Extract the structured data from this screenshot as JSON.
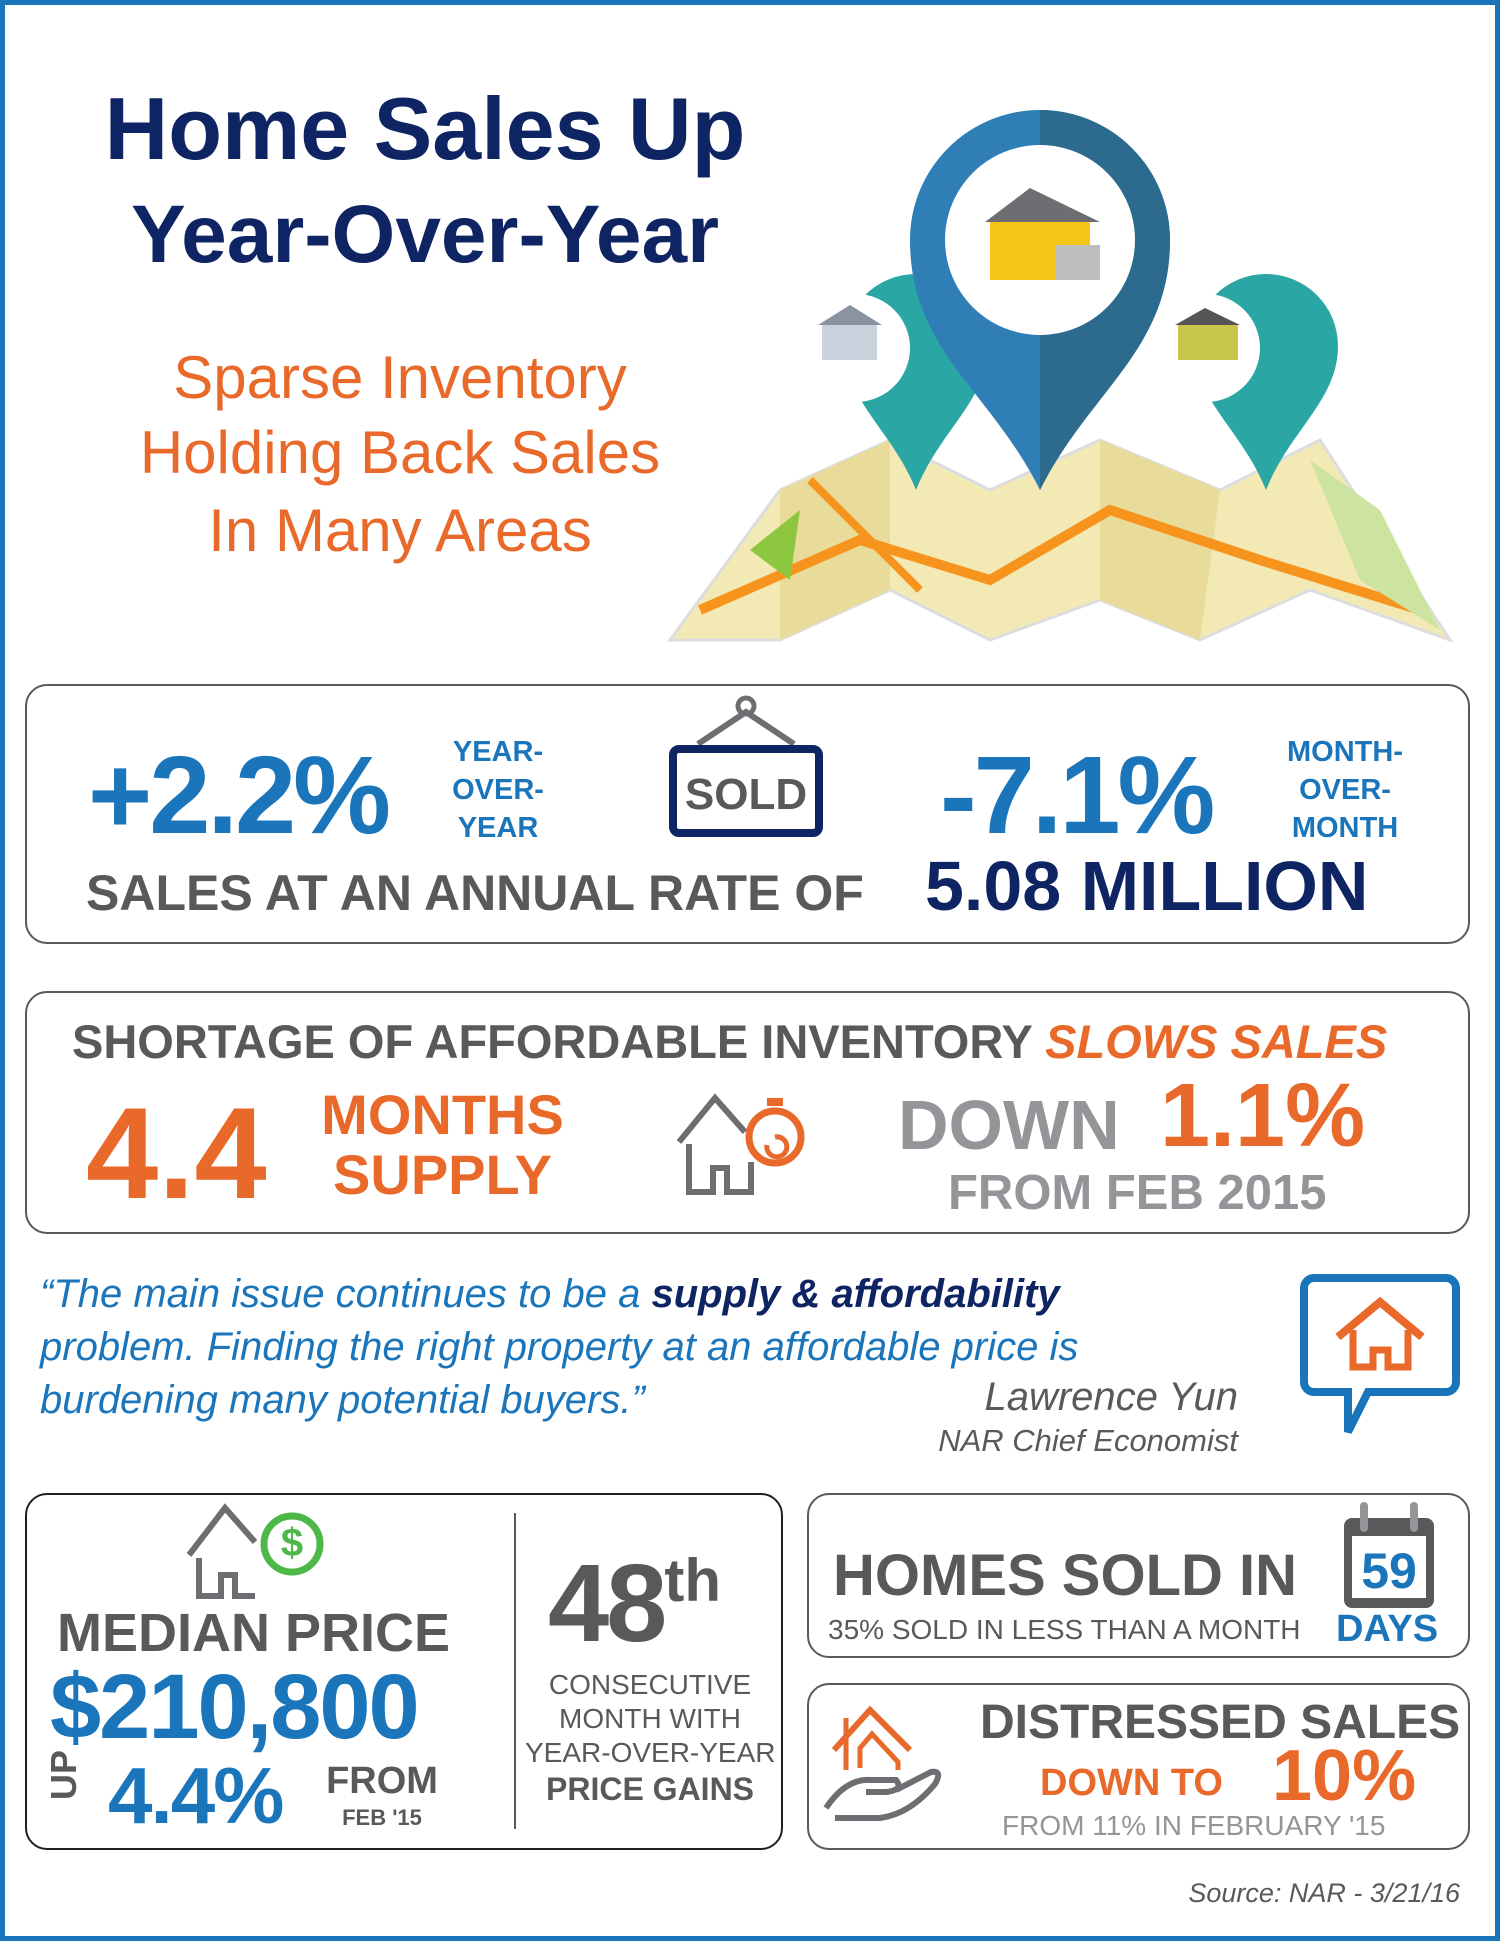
{
  "header": {
    "title_line1": "Home Sales Up",
    "title_line2": "Year-Over-Year",
    "subtitle_line1": "Sparse Inventory",
    "subtitle_line2": "Holding Back Sales",
    "subtitle_line3": "In Many Areas"
  },
  "sales": {
    "yoy_value": "+2.2%",
    "yoy_label": [
      "YEAR-",
      "OVER-",
      "YEAR"
    ],
    "sign_text": "SOLD",
    "mom_value": "-7.1%",
    "mom_label": [
      "MONTH-",
      "OVER-",
      "MONTH"
    ],
    "annual_rate_label": "SALES AT AN ANNUAL RATE OF",
    "annual_rate_value": "5.08 MILLION"
  },
  "inventory": {
    "heading": "SHORTAGE OF AFFORDABLE INVENTORY",
    "heading_emphasis": "SLOWS SALES",
    "months_value": "4.4",
    "months_label_1": "MONTHS",
    "months_label_2": "SUPPLY",
    "down_label": "DOWN",
    "down_value": "1.1%",
    "from_label": "FROM FEB 2015"
  },
  "quote": {
    "text_1": "“The main issue continues to be a ",
    "text_bold": "supply & affordability",
    "text_2": "problem. Finding the right property at an affordable price is",
    "text_3": "burdening many potential buyers.”",
    "author": "Lawrence Yun",
    "author_title": "NAR Chief Economist"
  },
  "median": {
    "label": "MEDIAN PRICE",
    "value": "$210,800",
    "up_label": "UP",
    "up_value": "4.4%",
    "from_label": "FROM",
    "from_date": "FEB '15",
    "dollar_sign": "$"
  },
  "consecutive": {
    "number": "48",
    "suffix": "th",
    "line1": "CONSECUTIVE",
    "line2": "MONTH WITH",
    "line3": "YEAR-OVER-YEAR",
    "line4": "PRICE GAINS"
  },
  "homes_sold": {
    "label": "HOMES SOLD IN",
    "days_value": "59",
    "days_label": "DAYS",
    "sub_label": "35% SOLD IN LESS THAN A MONTH"
  },
  "distressed": {
    "label": "DISTRESSED SALES",
    "down_to": "DOWN TO",
    "value": "10%",
    "from": "FROM 11% IN FEBRUARY '15"
  },
  "source": "Source: NAR - 3/21/16",
  "colors": {
    "navy": "#0f2563",
    "blue": "#1a75bb",
    "orange": "#e8692a",
    "gray": "#58595b",
    "green": "#4db848"
  }
}
